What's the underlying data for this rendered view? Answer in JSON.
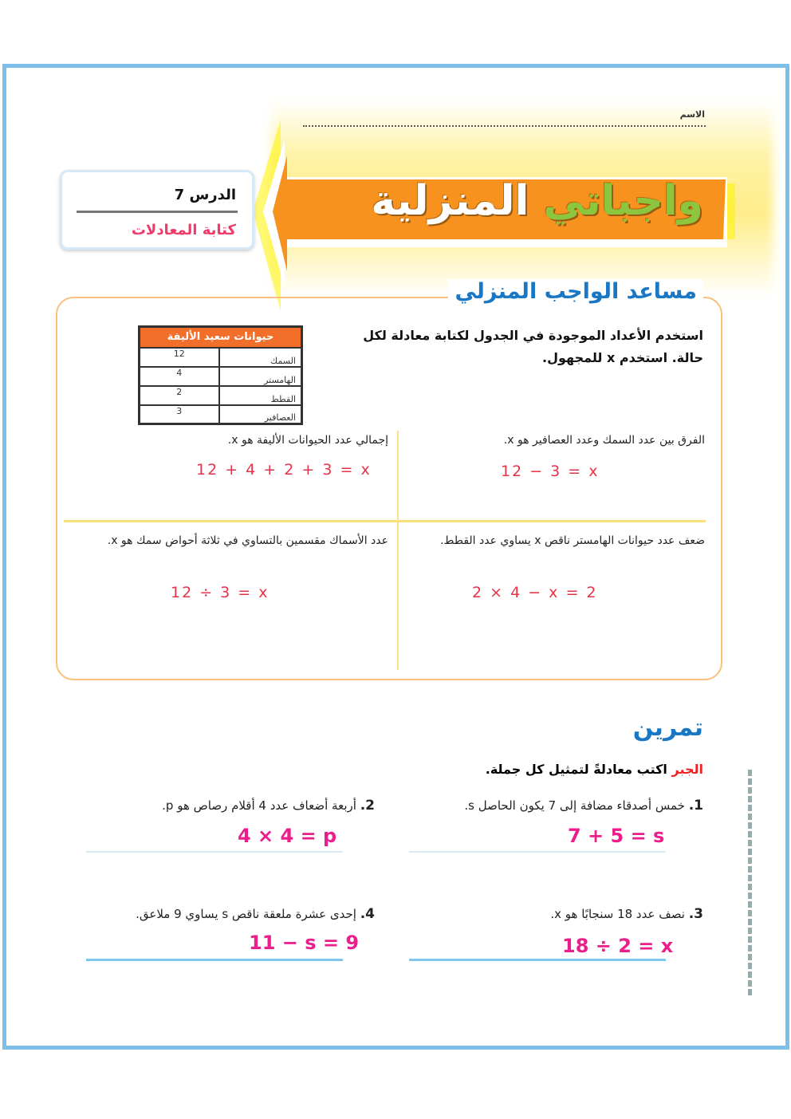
{
  "header": {
    "name_label": "الاسم",
    "title_part1": "واجباتي",
    "title_part2": "المنزلية",
    "lesson": "الدرس 7",
    "lesson_topic": "كتابة المعادلات"
  },
  "colors": {
    "frame": "#7cc0ea",
    "banner": "#f7921e",
    "heading": "#1a77c4",
    "answer": "#ec1e8c",
    "table_header": "#f26f2b"
  },
  "helper": {
    "title": "مساعد الواجب المنزلي",
    "instructions": "استخدم الأعداد الموجودة في الجدول لكتابة معادلة لكل حالة. استخدم x للمجهول.",
    "table": {
      "title": "حيوانات سعيد الأليفة",
      "rows": [
        {
          "animal": "السمك",
          "count": "12"
        },
        {
          "animal": "الهامستر",
          "count": "4"
        },
        {
          "animal": "القطط",
          "count": "2"
        },
        {
          "animal": "العصافير",
          "count": "3"
        }
      ]
    },
    "cases": [
      {
        "text": "الفرق بين عدد السمك وعدد العصافير هو x.",
        "equation": "12 − 3 = x"
      },
      {
        "text": "إجمالي عدد الحيوانات الأليفة هو x.",
        "equation": "12 + 4 + 2 + 3 = x"
      },
      {
        "text": "ضعف عدد حيوانات الهامستر ناقص x يساوي عدد القطط.",
        "equation": "2 × 4 − x = 2"
      },
      {
        "text": "عدد الأسماك مقسمين بالتساوي في ثلاثة أحواض سمك هو x.",
        "equation": "12 ÷ 3 = x"
      }
    ]
  },
  "practice": {
    "title": "تمرين",
    "tag": "الجبر",
    "instructions": "اكتب معادلةً لتمثيل كل جملة.",
    "items": [
      {
        "num": "1.",
        "text": "خمس أصدقاء مضافة إلى 7 يكون الحاصل s.",
        "answer": "7 + 5 = s"
      },
      {
        "num": "2.",
        "text": "أربعة أضعاف عدد 4 أقلام رصاص هو p.",
        "answer": "4 × 4 = p"
      },
      {
        "num": "3.",
        "text": "نصف عدد 18 سنجابًا هو x.",
        "answer": "18 ÷ 2 = x"
      },
      {
        "num": "4.",
        "text": "إحدى عشرة ملعقة ناقص s يساوي 9 ملاعق.",
        "answer": "11 − s = 9"
      }
    ]
  }
}
